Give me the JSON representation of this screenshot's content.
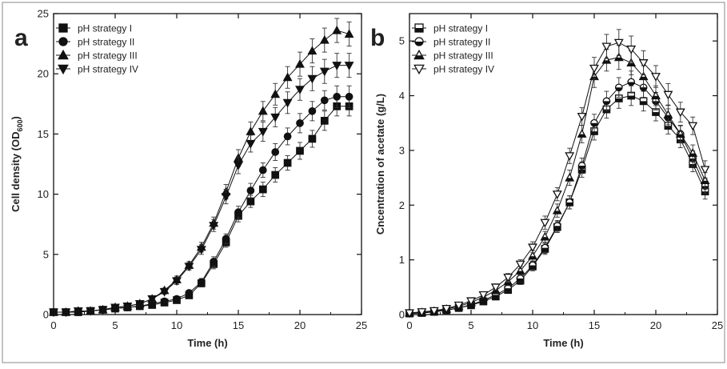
{
  "chart_data": [
    {
      "type": "line",
      "panel_label": "a",
      "xlabel": "Time (h)",
      "ylabel": "Cell density  (OD",
      "ylabel_sub": "600",
      "ylabel_tail": ")",
      "xlim": [
        0,
        25
      ],
      "ylim": [
        0,
        25
      ],
      "xticks": [
        "0",
        "5",
        "10",
        "15",
        "20",
        "25"
      ],
      "yticks": [
        "0",
        "5",
        "10",
        "15",
        "20",
        "25"
      ],
      "legend": "top-left",
      "grid": false,
      "x": [
        0,
        1,
        2,
        3,
        4,
        5,
        6,
        7,
        8,
        9,
        10,
        11,
        12,
        13,
        14,
        15,
        16,
        17,
        18,
        19,
        20,
        21,
        22,
        23,
        24
      ],
      "series": [
        {
          "name": "pH strategy I",
          "marker": "square-filled",
          "values": [
            0.2,
            0.2,
            0.2,
            0.3,
            0.4,
            0.5,
            0.6,
            0.7,
            0.8,
            1.0,
            1.2,
            1.6,
            2.6,
            4.2,
            6.0,
            8.2,
            9.4,
            10.4,
            11.6,
            12.6,
            13.6,
            14.6,
            16.1,
            17.3,
            17.3
          ],
          "err": [
            0.05,
            0.05,
            0.05,
            0.05,
            0.05,
            0.1,
            0.1,
            0.1,
            0.15,
            0.15,
            0.2,
            0.2,
            0.3,
            0.4,
            0.4,
            0.5,
            0.5,
            0.6,
            0.6,
            0.6,
            0.7,
            0.7,
            0.8,
            0.8,
            0.8
          ]
        },
        {
          "name": "pH strategy II",
          "marker": "circle-filled",
          "values": [
            0.2,
            0.2,
            0.2,
            0.3,
            0.4,
            0.5,
            0.6,
            0.7,
            0.9,
            1.1,
            1.3,
            1.8,
            2.7,
            4.4,
            6.3,
            8.5,
            10.3,
            12.0,
            13.5,
            14.8,
            15.9,
            16.9,
            17.8,
            18.1,
            18.1
          ],
          "err": [
            0.05,
            0.05,
            0.05,
            0.05,
            0.05,
            0.1,
            0.1,
            0.1,
            0.15,
            0.15,
            0.2,
            0.2,
            0.3,
            0.4,
            0.4,
            0.5,
            0.6,
            0.6,
            0.7,
            0.7,
            0.8,
            0.8,
            0.8,
            0.9,
            0.9
          ]
        },
        {
          "name": "pH strategy III",
          "marker": "triangle-up-filled",
          "values": [
            0.2,
            0.2,
            0.3,
            0.3,
            0.4,
            0.6,
            0.7,
            0.9,
            1.3,
            2.0,
            2.9,
            4.1,
            5.6,
            7.6,
            10.2,
            13.0,
            15.2,
            16.9,
            18.3,
            19.7,
            20.8,
            21.9,
            22.8,
            23.6,
            23.3
          ],
          "err": [
            0.05,
            0.05,
            0.05,
            0.05,
            0.1,
            0.1,
            0.1,
            0.15,
            0.2,
            0.2,
            0.3,
            0.3,
            0.4,
            0.5,
            0.6,
            0.7,
            0.8,
            0.8,
            0.9,
            0.9,
            1.0,
            1.0,
            1.0,
            1.0,
            1.0
          ]
        },
        {
          "name": "pH strategy IV",
          "marker": "triangle-down-filled",
          "values": [
            0.2,
            0.2,
            0.3,
            0.3,
            0.4,
            0.6,
            0.7,
            0.9,
            1.3,
            1.9,
            2.8,
            4.0,
            5.4,
            7.4,
            9.8,
            12.4,
            14.2,
            15.2,
            16.4,
            17.6,
            18.7,
            19.6,
            20.2,
            20.7,
            20.7
          ],
          "err": [
            0.05,
            0.05,
            0.05,
            0.05,
            0.1,
            0.1,
            0.1,
            0.15,
            0.2,
            0.2,
            0.3,
            0.3,
            0.4,
            0.5,
            0.6,
            0.7,
            0.7,
            0.8,
            0.8,
            0.9,
            0.9,
            1.0,
            1.0,
            1.0,
            1.0
          ]
        }
      ]
    },
    {
      "type": "line",
      "panel_label": "b",
      "xlabel": "Time (h)",
      "ylabel": "Cncentration of acetate (g/L)",
      "xlim": [
        0,
        25
      ],
      "ylim": [
        0,
        5.5
      ],
      "xticks": [
        "0",
        "5",
        "10",
        "15",
        "20",
        "25"
      ],
      "yticks": [
        "0",
        "1",
        "2",
        "3",
        "4",
        "5"
      ],
      "legend": "top-left",
      "grid": false,
      "x": [
        0,
        1,
        2,
        3,
        4,
        5,
        6,
        7,
        8,
        9,
        10,
        11,
        12,
        13,
        14,
        15,
        16,
        17,
        18,
        19,
        20,
        21,
        22,
        23,
        24
      ],
      "series": [
        {
          "name": "pH strategy I",
          "marker": "square-half",
          "values": [
            0.02,
            0.03,
            0.05,
            0.08,
            0.12,
            0.17,
            0.24,
            0.33,
            0.45,
            0.62,
            0.88,
            1.2,
            1.6,
            2.05,
            2.65,
            3.35,
            3.75,
            3.95,
            4.0,
            3.9,
            3.7,
            3.45,
            3.2,
            2.75,
            2.25
          ],
          "err": [
            0.02,
            0.02,
            0.02,
            0.03,
            0.03,
            0.04,
            0.05,
            0.05,
            0.06,
            0.07,
            0.08,
            0.1,
            0.1,
            0.12,
            0.14,
            0.16,
            0.16,
            0.18,
            0.18,
            0.18,
            0.16,
            0.15,
            0.15,
            0.14,
            0.14
          ]
        },
        {
          "name": "pH strategy II",
          "marker": "circle-half",
          "values": [
            0.02,
            0.03,
            0.05,
            0.08,
            0.12,
            0.18,
            0.26,
            0.36,
            0.48,
            0.66,
            0.9,
            1.22,
            1.62,
            2.05,
            2.72,
            3.5,
            3.9,
            4.15,
            4.25,
            4.15,
            3.9,
            3.6,
            3.3,
            2.85,
            2.35
          ],
          "err": [
            0.02,
            0.02,
            0.02,
            0.03,
            0.03,
            0.04,
            0.05,
            0.05,
            0.06,
            0.07,
            0.08,
            0.1,
            0.1,
            0.12,
            0.14,
            0.16,
            0.18,
            0.18,
            0.2,
            0.18,
            0.16,
            0.16,
            0.15,
            0.14,
            0.14
          ]
        },
        {
          "name": "pH strategy III",
          "marker": "triangle-up-half",
          "values": [
            0.03,
            0.04,
            0.06,
            0.1,
            0.15,
            0.22,
            0.32,
            0.44,
            0.6,
            0.8,
            1.07,
            1.42,
            1.9,
            2.5,
            3.3,
            4.35,
            4.65,
            4.7,
            4.6,
            4.35,
            4.0,
            3.65,
            3.3,
            2.95,
            2.45
          ],
          "err": [
            0.02,
            0.02,
            0.02,
            0.03,
            0.03,
            0.04,
            0.05,
            0.06,
            0.07,
            0.08,
            0.1,
            0.1,
            0.12,
            0.14,
            0.16,
            0.2,
            0.2,
            0.22,
            0.22,
            0.2,
            0.18,
            0.18,
            0.16,
            0.15,
            0.15
          ]
        },
        {
          "name": "pH strategy IV",
          "marker": "triangle-down-open",
          "values": [
            0.03,
            0.05,
            0.07,
            0.11,
            0.17,
            0.25,
            0.36,
            0.5,
            0.68,
            0.92,
            1.23,
            1.68,
            2.2,
            2.9,
            3.62,
            4.5,
            4.9,
            4.97,
            4.85,
            4.6,
            4.35,
            4.02,
            3.7,
            3.45,
            2.65
          ],
          "err": [
            0.02,
            0.02,
            0.02,
            0.03,
            0.03,
            0.04,
            0.05,
            0.06,
            0.07,
            0.08,
            0.1,
            0.12,
            0.12,
            0.14,
            0.16,
            0.2,
            0.22,
            0.24,
            0.24,
            0.22,
            0.2,
            0.2,
            0.18,
            0.16,
            0.16
          ]
        }
      ]
    }
  ]
}
